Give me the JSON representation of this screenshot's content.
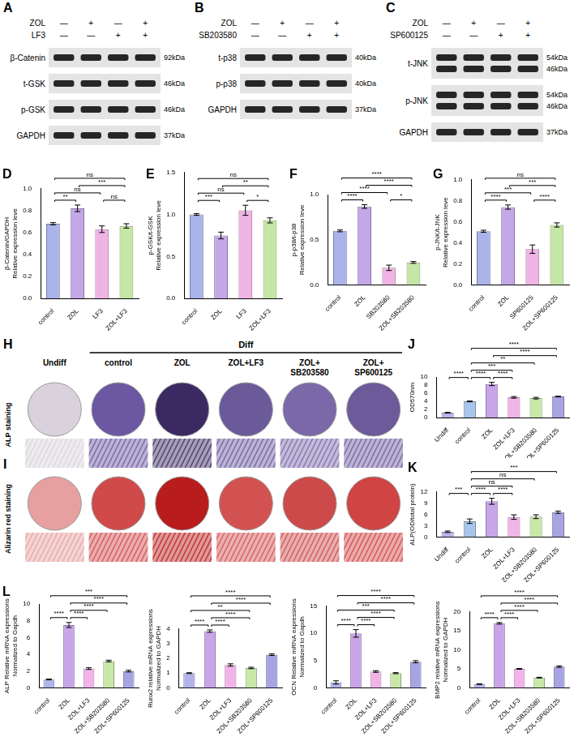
{
  "blots": [
    {
      "panel": "A",
      "treatments": [
        {
          "name": "ZOL",
          "signs": [
            "—",
            "+",
            "—",
            "+"
          ]
        },
        {
          "name": "LF3",
          "signs": [
            "—",
            "—",
            "+",
            "+"
          ]
        }
      ],
      "rows": [
        {
          "label": "β-Catenin",
          "kda": [
            "92kDa"
          ]
        },
        {
          "label": "t-GSK",
          "kda": [
            "46kDa"
          ]
        },
        {
          "label": "p-GSK",
          "kda": [
            "46kDa"
          ]
        },
        {
          "label": "GAPDH",
          "kda": [
            "37kDa"
          ]
        }
      ]
    },
    {
      "panel": "B",
      "treatments": [
        {
          "name": "ZOL",
          "signs": [
            "—",
            "+",
            "—",
            "+"
          ]
        },
        {
          "name": "SB203580",
          "signs": [
            "—",
            "—",
            "+",
            "+"
          ]
        }
      ],
      "rows": [
        {
          "label": "t-p38",
          "kda": [
            "40kDa"
          ]
        },
        {
          "label": "p-p38",
          "kda": [
            "40kDa"
          ]
        },
        {
          "label": "GAPDH",
          "kda": [
            "37kDa"
          ]
        }
      ]
    },
    {
      "panel": "C",
      "treatments": [
        {
          "name": "ZOL",
          "signs": [
            "—",
            "+",
            "—",
            "+"
          ]
        },
        {
          "name": "SP600125",
          "signs": [
            "—",
            "—",
            "+",
            "+"
          ]
        }
      ],
      "rows": [
        {
          "label": "t-JNK",
          "kda": [
            "54kDa",
            "46kDa"
          ]
        },
        {
          "label": "p-JNK",
          "kda": [
            "54kDa",
            "46kDa"
          ]
        },
        {
          "label": "GAPDH",
          "kda": [
            "37kDa"
          ]
        }
      ]
    }
  ],
  "staining": {
    "ungrouped": [
      "Undiff"
    ],
    "group": {
      "label": "Diff",
      "columns": [
        "control",
        "ZOL",
        "ZOL+LF3",
        "ZOL+SB203580",
        "ZOL+SP600125"
      ]
    },
    "rows": [
      {
        "panel": "H",
        "label": "ALP staining",
        "colors": [
          "#d9d2dc",
          "#6b57a2",
          "#3b2a62",
          "#6a5a9a",
          "#7a68a8",
          "#6c5a9a"
        ]
      },
      {
        "panel": "I",
        "label": "Alizarin red staining",
        "colors": [
          "#e6a0a0",
          "#d04a4a",
          "#b81c1c",
          "#d25252",
          "#cc4a4a",
          "#d04444"
        ]
      }
    ]
  },
  "chart_data": [
    {
      "panel": "D",
      "type": "bar",
      "categories": [
        "control",
        "ZOL",
        "LF3",
        "ZOL+LF3"
      ],
      "values": [
        0.68,
        0.82,
        0.63,
        0.66
      ],
      "errors": [
        0.01,
        0.03,
        0.03,
        0.02
      ],
      "colors": [
        "#aab4ea",
        "#c4a7e7",
        "#f0b4e4",
        "#c6e6a6"
      ],
      "y_label": [
        "β-Catenin/GAPDH",
        "Relative expression leve"
      ],
      "ylim": [
        0,
        1
      ],
      "yticks": [
        {
          "value": 0,
          "label": "0.0"
        },
        0.2,
        0.4,
        0.6,
        0.8,
        {
          "value": 1,
          "label": "1.0"
        }
      ],
      "grid": false,
      "significance": [
        {
          "from": "control",
          "to": "ZOL",
          "label": "**"
        },
        {
          "from": "control",
          "to": "LF3",
          "label": "ns"
        },
        {
          "from": "LF3",
          "to": "ZOL+LF3",
          "label": "ns"
        },
        {
          "from": "ZOL",
          "to": "ZOL+LF3",
          "label": "***"
        },
        {
          "from": "control",
          "to": "ZOL+LF3",
          "label": "ns"
        }
      ]
    },
    {
      "panel": "E",
      "type": "bar",
      "categories": [
        "control",
        "ZOL",
        "LF3",
        "ZOL+LF3"
      ],
      "values": [
        1.0,
        0.75,
        1.05,
        0.93
      ],
      "errors": [
        0.01,
        0.04,
        0.06,
        0.03
      ],
      "colors": [
        "#aab4ea",
        "#c4a7e7",
        "#f0b4e4",
        "#c6e6a6"
      ],
      "y_label": [
        "p-GSK/t-GSK",
        "Relative expression leve"
      ],
      "ylim": [
        0,
        1.5
      ],
      "yticks": [
        {
          "value": 0,
          "label": "0.0"
        },
        0.5,
        {
          "value": 1,
          "label": "1.0"
        },
        1.5
      ],
      "grid": false,
      "significance": [
        {
          "from": "control",
          "to": "ZOL",
          "label": "***"
        },
        {
          "from": "control",
          "to": "LF3",
          "label": "ns"
        },
        {
          "from": "LF3",
          "to": "ZOL+LF3",
          "label": "*"
        },
        {
          "from": "ZOL",
          "to": "ZOL+LF3",
          "label": "**"
        },
        {
          "from": "control",
          "to": "ZOL+LF3",
          "label": "ns"
        }
      ]
    },
    {
      "panel": "F",
      "type": "bar",
      "categories": [
        "control",
        "ZOL",
        "SB203580",
        "ZOL+SB203580"
      ],
      "values": [
        0.6,
        0.87,
        0.19,
        0.25
      ],
      "errors": [
        0.01,
        0.02,
        0.03,
        0.01
      ],
      "colors": [
        "#aab4ea",
        "#c4a7e7",
        "#f0b4e4",
        "#c6e6a6"
      ],
      "y_label": [
        "p-p38/t-p38",
        "Relative expression leve"
      ],
      "ylim": [
        0,
        1
      ],
      "yticks": [
        {
          "value": 0,
          "label": "0.0"
        },
        0.5,
        {
          "value": 1,
          "label": "1.0"
        }
      ],
      "grid": false,
      "significance": [
        {
          "from": "control",
          "to": "ZOL",
          "label": "****"
        },
        {
          "from": "SB203580",
          "to": "ZOL+SB203580",
          "label": "*"
        },
        {
          "from": "control",
          "to": "SB203580",
          "label": "****"
        },
        {
          "from": "ZOL",
          "to": "ZOL+SB203580",
          "label": "****"
        },
        {
          "from": "control",
          "to": "ZOL+SB203580",
          "label": "****"
        }
      ]
    },
    {
      "panel": "G",
      "type": "bar",
      "categories": [
        "control",
        "ZOL",
        "SP600125",
        "ZOL+SP600125"
      ],
      "values": [
        0.51,
        0.74,
        0.34,
        0.57
      ],
      "errors": [
        0.01,
        0.02,
        0.04,
        0.02
      ],
      "colors": [
        "#aab4ea",
        "#c4a7e7",
        "#f0b4e4",
        "#c6e6a6"
      ],
      "y_label": [
        "p-JNK/t-JNK",
        "Relative expression leve"
      ],
      "ylim": [
        0,
        1
      ],
      "yticks": [
        {
          "value": 0,
          "label": "0.0"
        },
        0.2,
        0.4,
        0.6,
        0.8,
        {
          "value": 1,
          "label": "1.0"
        }
      ],
      "grid": false,
      "significance": [
        {
          "from": "control",
          "to": "ZOL",
          "label": "****"
        },
        {
          "from": "SP600125",
          "to": "ZOL+SP600125",
          "label": "****"
        },
        {
          "from": "control",
          "to": "SP600125",
          "label": "***"
        },
        {
          "from": "ZOL",
          "to": "ZOL+SP600125",
          "label": "***"
        },
        {
          "from": "control",
          "to": "ZOL+SP600125",
          "label": "ns"
        }
      ]
    },
    {
      "panel": "J",
      "type": "bar",
      "categories": [
        "Undiff",
        "control",
        "ZOL",
        "ZOL+LF3",
        "ZOL+SB203580",
        "ZOL+SP600125"
      ],
      "values": [
        1.2,
        4.0,
        8.3,
        5.0,
        4.8,
        5.2
      ],
      "errors": [
        0.1,
        0.1,
        0.4,
        0.2,
        0.2,
        0.1
      ],
      "colors": [
        "#b6b4ea",
        "#a8c6ec",
        "#c8a6e8",
        "#f2b4e6",
        "#c8e8aa",
        "#a8a4e4"
      ],
      "y_label": "OD570nm",
      "ylim": [
        0,
        10
      ],
      "yticks": [
        0,
        2,
        4,
        6,
        8,
        10
      ],
      "grid": false,
      "significance": [
        {
          "from": "Undiff",
          "to": "control",
          "label": "****"
        },
        {
          "from": "control",
          "to": "ZOL",
          "label": "****"
        },
        {
          "from": "ZOL",
          "to": "ZOL+LF3",
          "label": "****"
        },
        {
          "from": "control",
          "to": "ZOL+LF3",
          "label": "***"
        },
        {
          "from": "control",
          "to": "ZOL+SB203580",
          "label": "**"
        },
        {
          "from": "ZOL",
          "to": "ZOL+SP600125",
          "label": "****"
        },
        {
          "from": "control",
          "to": "ZOL+SP600125",
          "label": "****"
        }
      ]
    },
    {
      "panel": "K",
      "type": "bar",
      "categories": [
        "Undiff",
        "control",
        "ZOL",
        "ZOL+LF3",
        "ZOL+SB203580",
        "ZOL+SP600125"
      ],
      "values": [
        1.4,
        4.2,
        9.5,
        5.3,
        5.4,
        6.6
      ],
      "errors": [
        0.2,
        0.6,
        0.8,
        0.6,
        0.5,
        0.3
      ],
      "colors": [
        "#b6b4ea",
        "#a8c6ec",
        "#c8a6e8",
        "#f2b4e6",
        "#c8e8aa",
        "#a8a4e4"
      ],
      "y_label": "ALP(OD/total protein)",
      "ylim": [
        0,
        12
      ],
      "yticks": [
        0,
        3,
        6,
        9,
        12
      ],
      "grid": false,
      "significance": [
        {
          "from": "Undiff",
          "to": "control",
          "label": "***"
        },
        {
          "from": "control",
          "to": "ZOL",
          "label": "****"
        },
        {
          "from": "ZOL",
          "to": "ZOL+LF3",
          "label": "****"
        },
        {
          "from": "control",
          "to": "ZOL+LF3",
          "label": "ns"
        },
        {
          "from": "control",
          "to": "ZOL+SB203580",
          "label": "ns"
        },
        {
          "from": "control",
          "to": "ZOL+SP600125",
          "label": "***"
        }
      ]
    },
    {
      "panel": "L",
      "type": "bar",
      "categories": [
        "control",
        "ZOL",
        "ZOL+LF3",
        "ZOL+SB203580",
        "ZOL+SP600125"
      ],
      "values": [
        1.0,
        7.5,
        2.3,
        3.2,
        2.0
      ],
      "errors": [
        0.05,
        0.3,
        0.1,
        0.1,
        0.1
      ],
      "colors": [
        "#b0b4ea",
        "#c8a4e8",
        "#f2b4e8",
        "#c8e8a8",
        "#a8a4e4"
      ],
      "y_label": [
        "ALP Relative mRNA expressions",
        "Normalized to Gapdh"
      ],
      "ylim": [
        0,
        10
      ],
      "yticks": [
        0,
        2,
        4,
        6,
        8,
        10
      ],
      "grid": false,
      "significance": [
        {
          "from": "control",
          "to": "ZOL",
          "label": "****"
        },
        {
          "from": "ZOL",
          "to": "ZOL+LF3",
          "label": "****"
        },
        {
          "from": "ZOL",
          "to": "ZOL+SB203580",
          "label": "****"
        },
        {
          "from": "ZOL",
          "to": "ZOL+SP600125",
          "label": "****"
        },
        {
          "from": "control",
          "to": "ZOL+SP600125",
          "label": "***"
        }
      ]
    },
    {
      "type": "bar",
      "categories": [
        "control",
        "ZOL",
        "ZOL+LF3",
        "ZOL+SB203580",
        "ZOL+SP600125"
      ],
      "values": [
        1.0,
        3.85,
        1.55,
        1.35,
        2.25
      ],
      "errors": [
        0.03,
        0.08,
        0.08,
        0.05,
        0.05
      ],
      "colors": [
        "#b0b4ea",
        "#c8a4e8",
        "#f2b4e8",
        "#c8e8a8",
        "#a8a4e4"
      ],
      "y_label": [
        "Runx2 relative mRNA expressions",
        "Normalized to GAPDH"
      ],
      "ylim": [
        0,
        4
      ],
      "yticks": [
        0,
        1,
        2,
        3,
        4
      ],
      "grid": false,
      "significance": [
        {
          "from": "control",
          "to": "ZOL",
          "label": "****"
        },
        {
          "from": "ZOL",
          "to": "ZOL+LF3",
          "label": "****"
        },
        {
          "from": "ZOL",
          "to": "ZOL+SB203580",
          "label": "****"
        },
        {
          "from": "control",
          "to": "ZOL+SB203580",
          "label": "**"
        },
        {
          "from": "ZOL",
          "to": "ZOL+SP600125",
          "label": "****"
        },
        {
          "from": "control",
          "to": "ZOL+SP600125",
          "label": "****"
        }
      ]
    },
    {
      "type": "bar",
      "categories": [
        "control",
        "ZOL",
        "ZOL+LF3",
        "ZOL+SB203580",
        "ZOL+SP600125"
      ],
      "values": [
        1.0,
        10.0,
        3.0,
        2.7,
        4.8
      ],
      "errors": [
        0.3,
        0.7,
        0.15,
        0.1,
        0.2
      ],
      "colors": [
        "#b0b4ea",
        "#c8a4e8",
        "#f2b4e8",
        "#c8e8a8",
        "#a8a4e4"
      ],
      "y_label": [
        "OCN Relative mRNA expressions",
        "Normalized to Gapdh"
      ],
      "ylim": [
        0,
        15
      ],
      "yticks": [
        0,
        5,
        10,
        15
      ],
      "grid": false,
      "significance": [
        {
          "from": "control",
          "to": "ZOL",
          "label": "****"
        },
        {
          "from": "ZOL",
          "to": "ZOL+LF3",
          "label": "****"
        },
        {
          "from": "ZOL",
          "to": "ZOL+SB203580",
          "label": "****"
        },
        {
          "from": "ZOL",
          "to": "ZOL+SP600125",
          "label": "****"
        },
        {
          "from": "control",
          "to": "ZOL+SB203580",
          "label": "***"
        },
        {
          "from": "control",
          "to": "ZOL+SP600125",
          "label": "****"
        }
      ]
    },
    {
      "type": "bar",
      "categories": [
        "control",
        "ZOL",
        "ZOL+LF3",
        "ZOL+SB203580",
        "ZOL+SP600125"
      ],
      "values": [
        1.0,
        17.0,
        5.0,
        2.7,
        5.6
      ],
      "errors": [
        0.1,
        0.2,
        0.1,
        0.1,
        0.2
      ],
      "colors": [
        "#b0b4ea",
        "#c8a4e8",
        "#f2b4e8",
        "#c8e8a8",
        "#a8a4e4"
      ],
      "y_label": [
        "BMP2 relative mRNA expressions",
        "Normalized to GAPDH"
      ],
      "ylim": [
        0,
        20
      ],
      "yticks": [
        0,
        5,
        10,
        15,
        20
      ],
      "grid": false,
      "significance": [
        {
          "from": "control",
          "to": "ZOL",
          "label": "****"
        },
        {
          "from": "ZOL",
          "to": "ZOL+LF3",
          "label": "****"
        },
        {
          "from": "ZOL",
          "to": "ZOL+SB203580",
          "label": "****"
        },
        {
          "from": "ZOL",
          "to": "ZOL+SP600125",
          "label": "****"
        },
        {
          "from": "control",
          "to": "ZOL+SP600125",
          "label": "****"
        }
      ]
    }
  ]
}
